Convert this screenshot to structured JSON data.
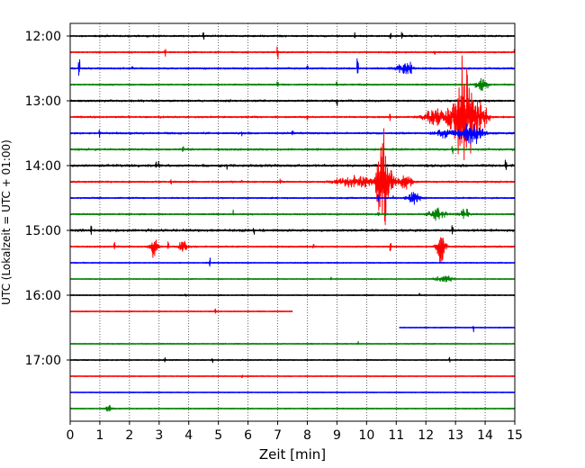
{
  "chart_data": {
    "type": "line",
    "subtype": "helicorder",
    "xlabel": "Zeit  [min]",
    "ylabel": "UTC (Lokalzeit = UTC + 01:00)",
    "xlim": [
      0,
      15
    ],
    "x_ticks": [
      0,
      1,
      2,
      3,
      4,
      5,
      6,
      7,
      8,
      9,
      10,
      11,
      12,
      13,
      14,
      15
    ],
    "y_tick_labels": [
      "12:00",
      "13:00",
      "14:00",
      "15:00",
      "16:00",
      "17:00"
    ],
    "vertical_grid": "dotted",
    "trace_colors": [
      "#000000",
      "#ff0000",
      "#0000ff",
      "#008000"
    ],
    "traces": [
      {
        "start": "12:00",
        "color": "#000000",
        "noise": 1.3,
        "spikes": [
          [
            4.5,
            5
          ],
          [
            9.6,
            3
          ],
          [
            10.8,
            4
          ],
          [
            11.2,
            2
          ]
        ]
      },
      {
        "start": "12:15",
        "color": "#ff0000",
        "noise": 1.1,
        "spikes": [
          [
            3.2,
            3
          ],
          [
            7.0,
            5
          ],
          [
            12.3,
            2
          ],
          [
            15.0,
            4
          ]
        ]
      },
      {
        "start": "12:30",
        "color": "#0000ff",
        "noise": 1.3,
        "spikes": [
          [
            0.3,
            6
          ],
          [
            2.1,
            3
          ],
          [
            8.0,
            3
          ],
          [
            9.7,
            10
          ],
          [
            11.1,
            6
          ],
          [
            11.5,
            5
          ]
        ],
        "burst": [
          [
            11.3,
            0.3,
            6
          ]
        ]
      },
      {
        "start": "12:45",
        "color": "#008000",
        "noise": 1.1,
        "spikes": [
          [
            7.0,
            3
          ],
          [
            9.0,
            5
          ],
          [
            13.8,
            3
          ]
        ],
        "burst": [
          [
            13.9,
            0.3,
            5
          ]
        ]
      },
      {
        "start": "13:00",
        "color": "#000000",
        "noise": 1.5,
        "spikes": [
          [
            9.0,
            3
          ]
        ]
      },
      {
        "start": "13:15",
        "color": "#ff0000",
        "noise": 1.3,
        "spikes": [
          [
            8.0,
            3
          ],
          [
            10.8,
            3
          ]
        ],
        "burst": [
          [
            12.4,
            0.6,
            8
          ],
          [
            13.3,
            0.55,
            52
          ],
          [
            13.9,
            0.3,
            9
          ]
        ]
      },
      {
        "start": "13:30",
        "color": "#0000ff",
        "noise": 1.4,
        "spikes": [
          [
            1.0,
            3
          ],
          [
            5.8,
            3
          ],
          [
            7.5,
            3
          ],
          [
            13.4,
            5
          ]
        ],
        "burst": [
          [
            12.6,
            0.4,
            5
          ],
          [
            13.5,
            0.6,
            8
          ]
        ]
      },
      {
        "start": "13:45",
        "color": "#008000",
        "noise": 1.5,
        "spikes": [
          [
            3.8,
            3
          ],
          [
            12.9,
            4
          ]
        ]
      },
      {
        "start": "14:00",
        "color": "#000000",
        "noise": 1.8,
        "spikes": [
          [
            2.9,
            3
          ],
          [
            3.0,
            3
          ],
          [
            5.3,
            3
          ],
          [
            14.7,
            4
          ]
        ]
      },
      {
        "start": "14:15",
        "color": "#ff0000",
        "noise": 1.3,
        "spikes": [
          [
            3.4,
            4
          ],
          [
            5.8,
            5
          ],
          [
            7.1,
            3
          ]
        ],
        "burst": [
          [
            9.6,
            0.8,
            6
          ],
          [
            10.6,
            0.35,
            36
          ],
          [
            11.3,
            0.3,
            7
          ]
        ]
      },
      {
        "start": "14:30",
        "color": "#0000ff",
        "noise": 1.1,
        "spikes": [
          [
            10.4,
            3
          ],
          [
            10.9,
            3
          ]
        ],
        "burst": [
          [
            11.6,
            0.3,
            5
          ]
        ]
      },
      {
        "start": "14:45",
        "color": "#008000",
        "noise": 1.2,
        "spikes": [
          [
            5.5,
            3
          ],
          [
            10.4,
            3
          ]
        ],
        "burst": [
          [
            12.4,
            0.4,
            5
          ],
          [
            13.3,
            0.2,
            5
          ]
        ]
      },
      {
        "start": "15:00",
        "color": "#000000",
        "noise": 1.8,
        "spikes": [
          [
            0.7,
            4
          ],
          [
            6.2,
            3
          ],
          [
            12.9,
            5
          ]
        ]
      },
      {
        "start": "15:15",
        "color": "#ff0000",
        "noise": 1.1,
        "spikes": [
          [
            1.5,
            4
          ],
          [
            3.3,
            3
          ],
          [
            8.2,
            3
          ],
          [
            10.8,
            3
          ]
        ],
        "burst": [
          [
            2.8,
            0.2,
            8
          ],
          [
            3.8,
            0.2,
            8
          ],
          [
            12.5,
            0.2,
            18
          ]
        ]
      },
      {
        "start": "15:30",
        "color": "#0000ff",
        "noise": 0.8,
        "spikes": [
          [
            4.7,
            4
          ]
        ]
      },
      {
        "start": "15:45",
        "color": "#008000",
        "noise": 0.7,
        "spikes": [
          [
            8.8,
            2
          ]
        ],
        "burst": [
          [
            12.6,
            0.4,
            3
          ]
        ]
      },
      {
        "start": "16:00",
        "color": "#000000",
        "noise": 0.8,
        "spikes": [
          [
            3.9,
            2
          ],
          [
            11.8,
            2
          ]
        ]
      },
      {
        "start": "16:15",
        "color": "#ff0000",
        "noise": 0.7,
        "end_min": 7.5,
        "spikes": [
          [
            4.9,
            2
          ]
        ]
      },
      {
        "start": "16:30",
        "color": "#0000ff",
        "noise": 0.7,
        "start_min": 11.1,
        "spikes": [
          [
            13.6,
            4
          ]
        ]
      },
      {
        "start": "16:45",
        "color": "#008000",
        "noise": 0.8,
        "spikes": [
          [
            9.7,
            2
          ]
        ]
      },
      {
        "start": "17:00",
        "color": "#000000",
        "noise": 0.8,
        "spikes": [
          [
            3.2,
            3
          ],
          [
            4.8,
            2
          ],
          [
            12.8,
            2
          ]
        ]
      },
      {
        "start": "17:15",
        "color": "#ff0000",
        "noise": 0.7,
        "spikes": [
          [
            5.8,
            2
          ]
        ]
      },
      {
        "start": "17:30",
        "color": "#0000ff",
        "noise": 0.6,
        "spikes": []
      },
      {
        "start": "17:45",
        "color": "#008000",
        "noise": 0.8,
        "spikes": [],
        "burst": [
          [
            1.3,
            0.15,
            4
          ]
        ]
      }
    ]
  }
}
